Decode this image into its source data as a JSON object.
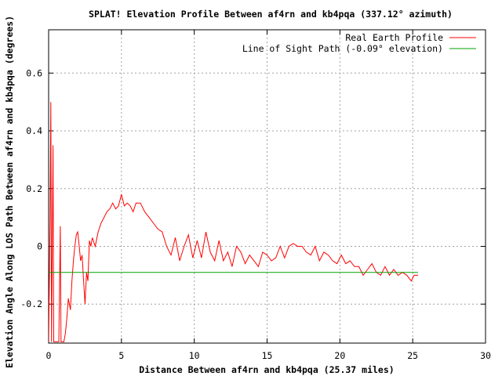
{
  "chart_data": {
    "type": "line",
    "title": "SPLAT! Elevation Profile Between af4rn and kb4pqa (337.12° azimuth)",
    "xlabel": "Distance Between af4rn and kb4pqa (25.37 miles)",
    "ylabel": "Elevation Angle Along LOS Path Between af4rn and kb4pqa (degrees)",
    "xlim": [
      0,
      30
    ],
    "ylim": [
      -0.335,
      0.75
    ],
    "xticks": [
      0,
      5,
      10,
      15,
      20,
      25,
      30
    ],
    "xtick_labels": [
      "0",
      "5",
      "10",
      "15",
      "20",
      "25",
      "30"
    ],
    "yticks": [
      -0.2,
      0,
      0.2,
      0.4,
      0.6
    ],
    "ytick_labels": [
      "-0.2",
      "0",
      "0.2",
      "0.4",
      "0.6"
    ],
    "grid": true,
    "legend_position": "top-right",
    "series": [
      {
        "name": "Real Earth Profile",
        "color": "#ff0000",
        "x": [
          0.0,
          0.1,
          0.15,
          0.2,
          0.3,
          0.35,
          0.4,
          0.5,
          0.6,
          0.7,
          0.8,
          0.85,
          0.95,
          1.05,
          1.15,
          1.25,
          1.35,
          1.5,
          1.6,
          1.7,
          1.8,
          1.9,
          2.0,
          2.1,
          2.2,
          2.3,
          2.4,
          2.5,
          2.6,
          2.7,
          2.8,
          2.9,
          3.0,
          3.2,
          3.4,
          3.6,
          3.8,
          4.0,
          4.2,
          4.4,
          4.6,
          4.8,
          5.0,
          5.2,
          5.4,
          5.6,
          5.8,
          6.0,
          6.3,
          6.6,
          6.9,
          7.2,
          7.5,
          7.8,
          8.1,
          8.4,
          8.7,
          9.0,
          9.3,
          9.6,
          9.9,
          10.2,
          10.5,
          10.8,
          11.1,
          11.4,
          11.7,
          12.0,
          12.3,
          12.6,
          12.9,
          13.2,
          13.5,
          13.8,
          14.1,
          14.4,
          14.7,
          15.0,
          15.3,
          15.6,
          15.9,
          16.2,
          16.5,
          16.8,
          17.1,
          17.4,
          17.7,
          18.0,
          18.3,
          18.6,
          18.9,
          19.2,
          19.5,
          19.8,
          20.1,
          20.4,
          20.7,
          21.0,
          21.3,
          21.6,
          21.9,
          22.2,
          22.5,
          22.8,
          23.1,
          23.4,
          23.7,
          24.0,
          24.3,
          24.6,
          24.9,
          25.1,
          25.37
        ],
        "y": [
          -0.33,
          0.1,
          0.5,
          -0.33,
          0.35,
          -0.33,
          -0.33,
          -0.33,
          -0.33,
          -0.33,
          0.07,
          -0.33,
          -0.33,
          -0.33,
          -0.3,
          -0.25,
          -0.18,
          -0.22,
          -0.12,
          -0.05,
          0.0,
          0.04,
          0.05,
          0.0,
          -0.05,
          -0.03,
          -0.12,
          -0.2,
          -0.09,
          -0.12,
          0.02,
          0.0,
          0.03,
          0.0,
          0.05,
          0.08,
          0.1,
          0.12,
          0.13,
          0.15,
          0.13,
          0.14,
          0.18,
          0.14,
          0.15,
          0.14,
          0.12,
          0.15,
          0.15,
          0.12,
          0.1,
          0.08,
          0.06,
          0.05,
          0.0,
          -0.03,
          0.03,
          -0.05,
          0.0,
          0.04,
          -0.04,
          0.02,
          -0.04,
          0.05,
          -0.02,
          -0.05,
          0.02,
          -0.05,
          -0.02,
          -0.07,
          0.0,
          -0.02,
          -0.06,
          -0.03,
          -0.05,
          -0.07,
          -0.02,
          -0.03,
          -0.05,
          -0.04,
          0.0,
          -0.04,
          0.0,
          0.01,
          0.0,
          0.0,
          -0.02,
          -0.03,
          0.0,
          -0.05,
          -0.02,
          -0.03,
          -0.05,
          -0.06,
          -0.03,
          -0.06,
          -0.05,
          -0.07,
          -0.07,
          -0.1,
          -0.08,
          -0.06,
          -0.09,
          -0.1,
          -0.07,
          -0.1,
          -0.08,
          -0.1,
          -0.09,
          -0.1,
          -0.12,
          -0.1,
          -0.1
        ]
      },
      {
        "name": "Line of Sight Path (-0.09° elevation)",
        "color": "#00a000",
        "x": [
          0,
          25.37
        ],
        "y": [
          -0.09,
          -0.09
        ]
      }
    ]
  }
}
